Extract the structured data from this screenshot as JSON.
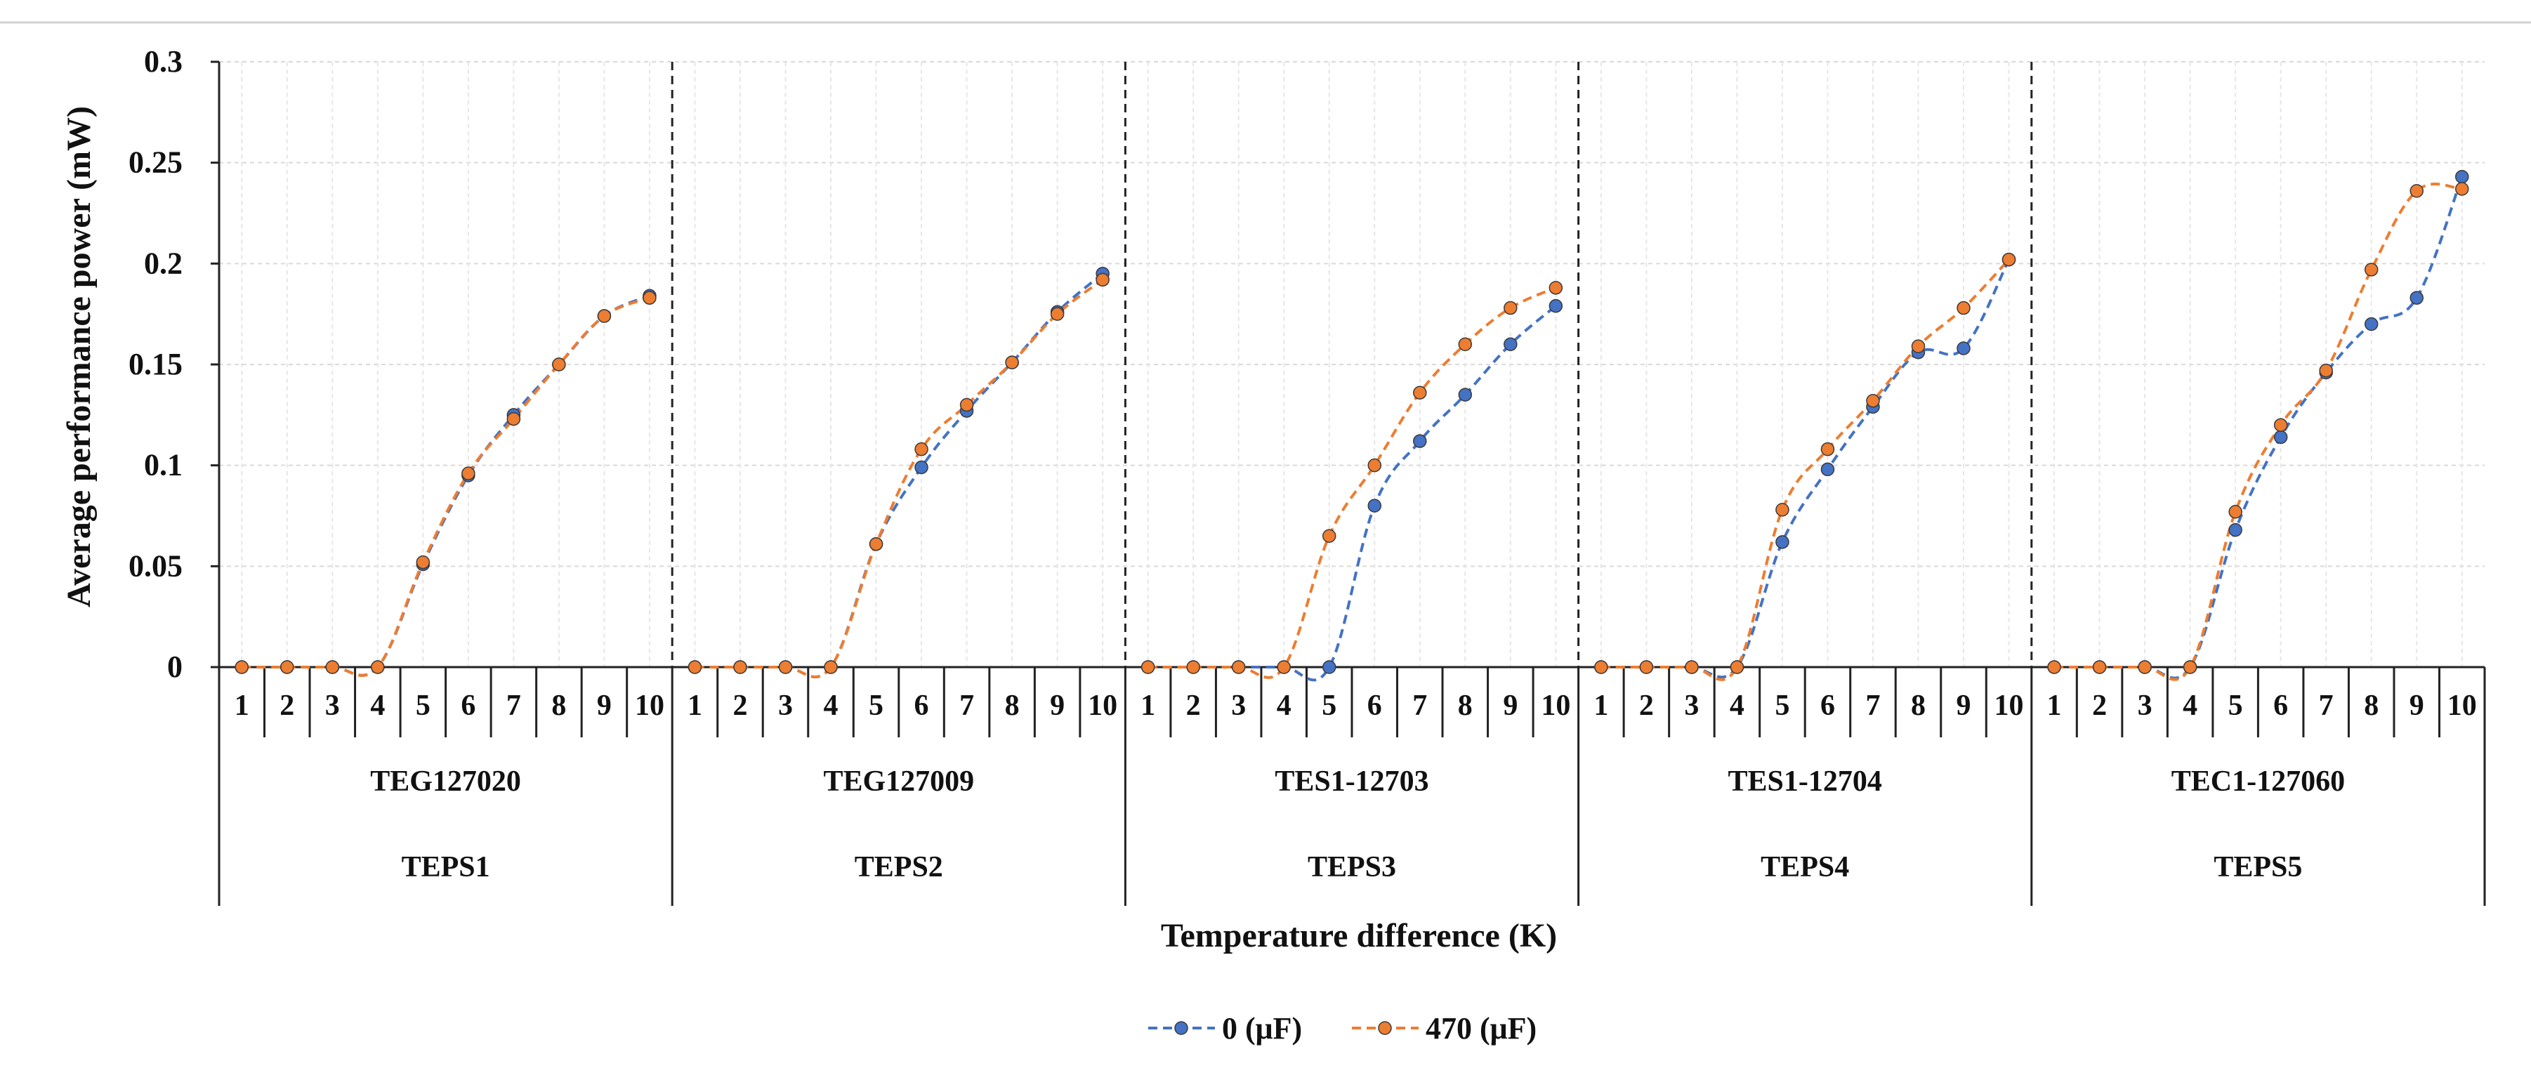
{
  "chart_data": {
    "type": "line",
    "title": "",
    "ylabel": "Average performance power (mW)",
    "xlabel": "Temperature difference (K)",
    "ylim": [
      0,
      0.3
    ],
    "yticks": [
      0,
      0.05,
      0.1,
      0.15,
      0.2,
      0.25,
      0.3
    ],
    "ytick_labels": [
      "0",
      "0.05",
      "0.1",
      "0.15",
      "0.2",
      "0.25",
      "0.3"
    ],
    "grid": true,
    "legend_position": "bottom-center",
    "categories": [
      "1",
      "2",
      "3",
      "4",
      "5",
      "6",
      "7",
      "8",
      "9",
      "10"
    ],
    "groups": [
      {
        "module": "TEG127020",
        "name": "TEPS1",
        "series": [
          {
            "name": "0 (μF)",
            "values": [
              0,
              0,
              0,
              0,
              0.051,
              0.095,
              0.125,
              0.15,
              0.174,
              0.184
            ]
          },
          {
            "name": "470 (μF)",
            "values": [
              0,
              0,
              0,
              0,
              0.052,
              0.096,
              0.123,
              0.15,
              0.174,
              0.183
            ]
          }
        ]
      },
      {
        "module": "TEG127009",
        "name": "TEPS2",
        "series": [
          {
            "name": "0 (μF)",
            "values": [
              0,
              0,
              0,
              0,
              0.061,
              0.099,
              0.127,
              0.151,
              0.176,
              0.195
            ]
          },
          {
            "name": "470 (μF)",
            "values": [
              0,
              0,
              0,
              0,
              0.061,
              0.108,
              0.13,
              0.151,
              0.175,
              0.192
            ]
          }
        ]
      },
      {
        "module": "TES1-12703",
        "name": "TEPS3",
        "series": [
          {
            "name": "0 (μF)",
            "values": [
              0,
              0,
              0,
              0,
              0,
              0.08,
              0.112,
              0.135,
              0.16,
              0.179
            ]
          },
          {
            "name": "470 (μF)",
            "values": [
              0,
              0,
              0,
              0,
              0.065,
              0.1,
              0.136,
              0.16,
              0.178,
              0.188
            ]
          }
        ]
      },
      {
        "module": "TES1-12704",
        "name": "TEPS4",
        "series": [
          {
            "name": "0 (μF)",
            "values": [
              0,
              0,
              0,
              0,
              0.062,
              0.098,
              0.129,
              0.156,
              0.158,
              0.202
            ]
          },
          {
            "name": "470 (μF)",
            "values": [
              0,
              0,
              0,
              0,
              0.078,
              0.108,
              0.132,
              0.159,
              0.178,
              0.202
            ]
          }
        ]
      },
      {
        "module": "TEC1-127060",
        "name": "TEPS5",
        "series": [
          {
            "name": "0 (μF)",
            "values": [
              0,
              0,
              0,
              0,
              0.068,
              0.114,
              0.146,
              0.17,
              0.183,
              0.243
            ]
          },
          {
            "name": "470 (μF)",
            "values": [
              0,
              0,
              0,
              0,
              0.077,
              0.12,
              0.147,
              0.197,
              0.236,
              0.237
            ]
          }
        ]
      }
    ],
    "series_colors": {
      "0 (μF)": "#4472C4",
      "470 (μF)": "#ED7D31"
    },
    "legend": [
      "0 (μF)",
      "470 (μF)"
    ]
  }
}
